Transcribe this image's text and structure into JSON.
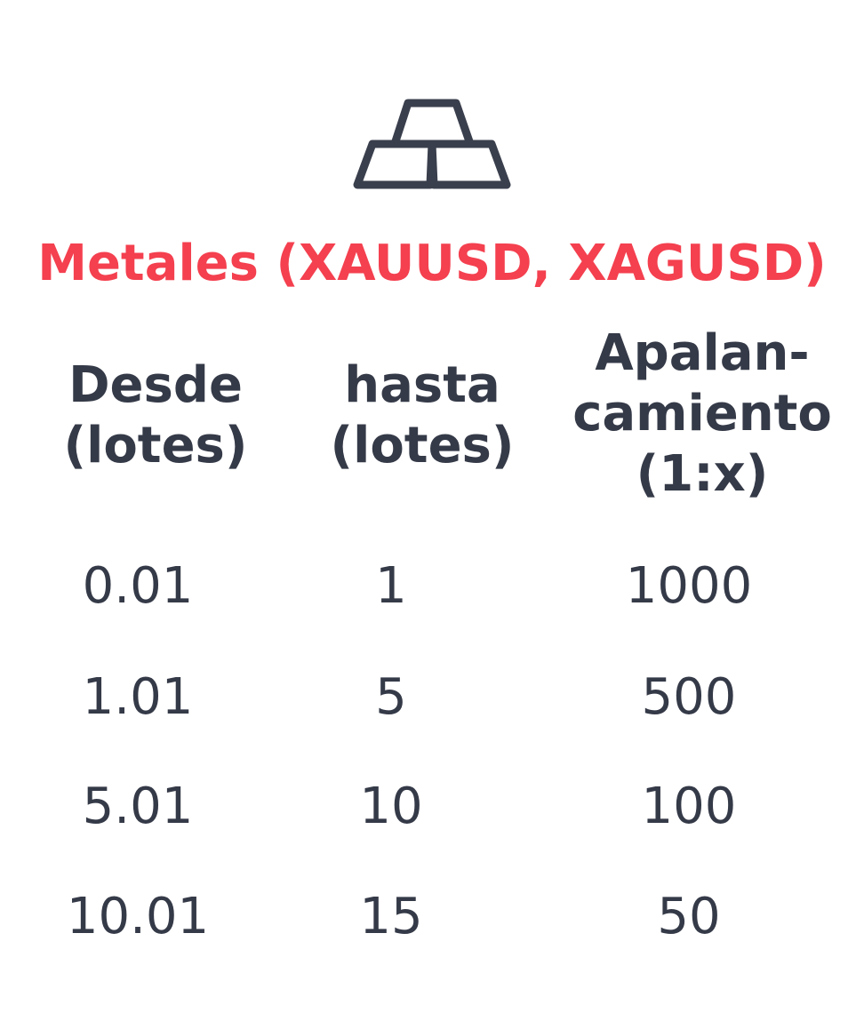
{
  "colors": {
    "title": "#f4404f",
    "text": "#353a48",
    "icon": "#3a3f4d"
  },
  "icon": {
    "name": "gold-bars-icon"
  },
  "title": "Metales (XAUUSD, XAGUSD)",
  "table": {
    "headers": [
      "Desde\n(lotes)",
      "hasta\n(lotes)",
      "Apalan-\ncamiento\n(1:x)"
    ],
    "rows": [
      [
        "0.01",
        "1",
        "1000"
      ],
      [
        "1.01",
        "5",
        "500"
      ],
      [
        "5.01",
        "10",
        "100"
      ],
      [
        "10.01",
        "15",
        "50"
      ]
    ]
  }
}
